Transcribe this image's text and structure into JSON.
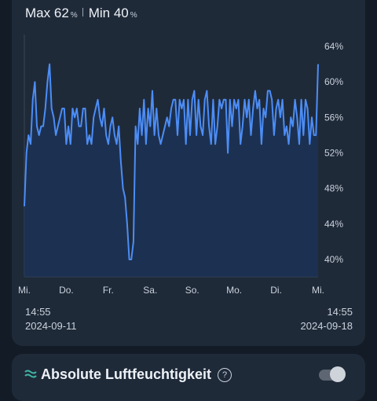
{
  "stats": {
    "max_label": "Max",
    "max_value": "62",
    "min_label": "Min",
    "min_value": "40",
    "unit": "%"
  },
  "range": {
    "start_time": "14:55",
    "start_date": "2024-09-11",
    "end_time": "14:55",
    "end_date": "2024-09-18"
  },
  "next_card": {
    "title": "Absolute Luftfeuchtigkeit",
    "help": "?",
    "toggle_on": false
  },
  "colors": {
    "line": "#4c8df6",
    "area": "#1c3356",
    "card": "#1f2a39",
    "background": "#131b26"
  },
  "chart_data": {
    "type": "area",
    "ylim": [
      38,
      64
    ],
    "yticks": [
      "64%",
      "60%",
      "56%",
      "52%",
      "48%",
      "44%",
      "40%"
    ],
    "ytick_values": [
      64,
      60,
      56,
      52,
      48,
      44,
      40
    ],
    "xticks": [
      "Mi.",
      "Do.",
      "Fr.",
      "Sa.",
      "So.",
      "Mo.",
      "Di.",
      "Mi."
    ],
    "x": [
      0.0,
      0.05,
      0.1,
      0.15,
      0.2,
      0.25,
      0.3,
      0.35,
      0.4,
      0.45,
      0.5,
      0.55,
      0.6,
      0.65,
      0.7,
      0.75,
      0.8,
      0.85,
      0.9,
      0.95,
      1.0,
      1.05,
      1.1,
      1.15,
      1.2,
      1.25,
      1.3,
      1.35,
      1.4,
      1.45,
      1.5,
      1.55,
      1.6,
      1.65,
      1.7,
      1.75,
      1.8,
      1.85,
      1.9,
      1.95,
      2.0,
      2.05,
      2.1,
      2.15,
      2.2,
      2.25,
      2.3,
      2.35,
      2.4,
      2.45,
      2.5,
      2.55,
      2.6,
      2.65,
      2.7,
      2.75,
      2.8,
      2.85,
      2.9,
      2.95,
      3.0,
      3.05,
      3.1,
      3.15,
      3.2,
      3.25,
      3.3,
      3.35,
      3.4,
      3.45,
      3.5,
      3.55,
      3.6,
      3.65,
      3.7,
      3.75,
      3.8,
      3.85,
      3.9,
      3.95,
      4.0,
      4.05,
      4.1,
      4.15,
      4.2,
      4.25,
      4.3,
      4.35,
      4.4,
      4.45,
      4.5,
      4.55,
      4.6,
      4.65,
      4.7,
      4.75,
      4.8,
      4.85,
      4.9,
      4.95,
      5.0,
      5.05,
      5.1,
      5.15,
      5.2,
      5.25,
      5.3,
      5.35,
      5.4,
      5.45,
      5.5,
      5.55,
      5.6,
      5.65,
      5.7,
      5.75,
      5.8,
      5.85,
      5.9,
      5.95,
      6.0,
      6.05,
      6.1,
      6.15,
      6.2,
      6.25,
      6.3,
      6.35,
      6.4,
      6.45,
      6.5,
      6.55,
      6.6,
      6.65,
      6.7,
      6.75,
      6.8,
      6.85,
      6.9,
      6.95,
      7.0
    ],
    "values": [
      46,
      52,
      54,
      53,
      58,
      60,
      55,
      54,
      55,
      55,
      57,
      60,
      62,
      57,
      56,
      54,
      55,
      56,
      57,
      57,
      53,
      55,
      53,
      57,
      56,
      57,
      55,
      55,
      57,
      57,
      53,
      54,
      53,
      56,
      57,
      58,
      56,
      55,
      57,
      54,
      53,
      55,
      56,
      54,
      53,
      55,
      51,
      48,
      47,
      44,
      40,
      40,
      42,
      55,
      53,
      57,
      54,
      58,
      53,
      57,
      55,
      59,
      54,
      57,
      54,
      53,
      54,
      55,
      56,
      55,
      57,
      58,
      58,
      54,
      58,
      57,
      58,
      53,
      58,
      54,
      58,
      59,
      54,
      58,
      55,
      54,
      58,
      59,
      55,
      53,
      58,
      53,
      55,
      58,
      57,
      58,
      58,
      52,
      58,
      55,
      58,
      57,
      58,
      53,
      55,
      58,
      56,
      58,
      54,
      57,
      59,
      57,
      58,
      53,
      57,
      56,
      59,
      59,
      58,
      54,
      57,
      58,
      56,
      58,
      54,
      55,
      53,
      56,
      55,
      58,
      56,
      53,
      58,
      54,
      58,
      57,
      53,
      56,
      54,
      54,
      62
    ]
  }
}
